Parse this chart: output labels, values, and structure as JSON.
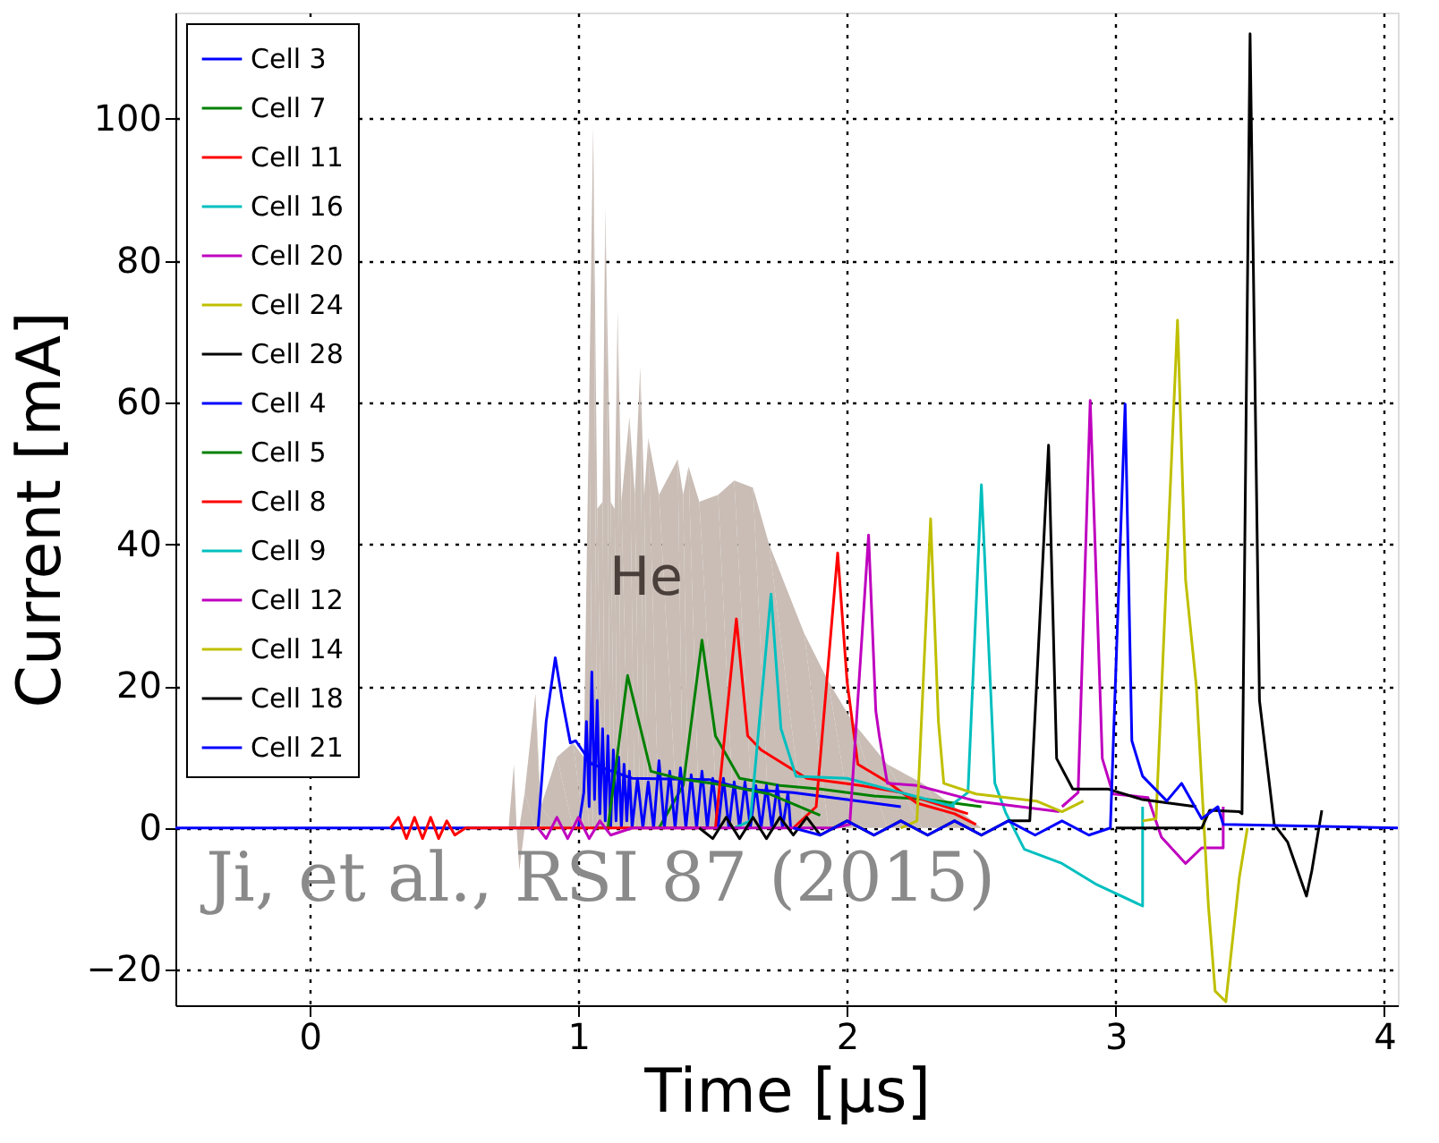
{
  "chart_data": {
    "type": "line",
    "xlabel": "Time [μs]",
    "ylabel": "Current [mA]",
    "xlim": [
      -0.5,
      4.05
    ],
    "ylim": [
      -25,
      115
    ],
    "xticks": [
      0,
      1,
      2,
      3,
      4
    ],
    "yticks": [
      -20,
      0,
      20,
      40,
      60,
      80,
      100
    ],
    "grid": true,
    "legend": "top left",
    "line_style": "solid",
    "marker": "none",
    "annotations": [
      "Ji, et al., RSI 87 (2015)"
    ],
    "series": [
      {
        "name": "He",
        "type": "area",
        "color": "#c9bdb6",
        "x": [
          0.7,
          0.74,
          0.76,
          0.77,
          0.78,
          0.8,
          0.84,
          0.86,
          0.92,
          0.98,
          1.02,
          1.04,
          1.055,
          1.07,
          1.09,
          1.1,
          1.12,
          1.135,
          1.146,
          1.16,
          1.19,
          1.21,
          1.23,
          1.245,
          1.26,
          1.3,
          1.37,
          1.39,
          1.41,
          1.45,
          1.52,
          1.58,
          1.65,
          1.71,
          1.84,
          1.93,
          2.02,
          2.15,
          2.28,
          2.4,
          2.5
        ],
        "values": [
          0,
          0,
          9,
          0,
          -6,
          5,
          19,
          3,
          10,
          12,
          10,
          60,
          99,
          45,
          46,
          87.5,
          46,
          45,
          73,
          46,
          58,
          47,
          65,
          47,
          55,
          47,
          52,
          47,
          51,
          46,
          47,
          49,
          48,
          40,
          27.5,
          20.7,
          15,
          9,
          6.3,
          3,
          0
        ]
      },
      {
        "name": "Cell 3",
        "color": "#0000ff",
        "x": [
          -0.5,
          0.85,
          0.88,
          0.914,
          0.94,
          0.97,
          0.99,
          1.05,
          1.2,
          1.49,
          1.62,
          1.8,
          2.0,
          2.2
        ],
        "values": [
          0,
          0,
          15,
          24,
          18,
          12,
          12.3,
          9,
          7,
          6.8,
          5.5,
          5,
          4,
          3
        ]
      },
      {
        "name": "Cell 7",
        "color": "#008000",
        "x": [
          1.3,
          1.39,
          1.46,
          1.51,
          1.6,
          1.75,
          1.9,
          2.1,
          2.3,
          2.5
        ],
        "values": [
          0,
          6,
          26.5,
          13,
          7,
          6,
          5.5,
          4.5,
          4,
          3
        ]
      },
      {
        "name": "Cell 11",
        "color": "#ff0000",
        "x": [
          1.8,
          1.885,
          1.965,
          2.0,
          2.04,
          2.15,
          2.26,
          2.4,
          2.48
        ],
        "values": [
          0,
          3,
          38.8,
          20.7,
          9,
          6.5,
          3.5,
          2,
          0.5
        ]
      },
      {
        "name": "Cell 16",
        "color": "#00bfbf",
        "x": [
          2.38,
          2.45,
          2.5,
          2.55,
          2.59,
          2.66,
          2.8,
          2.93,
          3.1,
          3.1
        ],
        "values": [
          3,
          5,
          48.4,
          6.3,
          2.2,
          -3,
          -5,
          -8,
          -11,
          3
        ]
      },
      {
        "name": "Cell 20",
        "color": "#bf00bf",
        "x": [
          2.8,
          2.86,
          2.905,
          2.95,
          2.99,
          3.12,
          3.17,
          3.26,
          3.32,
          3.4,
          3.4
        ],
        "values": [
          3,
          5,
          60.3,
          9.8,
          4.8,
          4.3,
          -1.3,
          -5,
          -2.8,
          -2.8,
          3
        ]
      },
      {
        "name": "Cell 24",
        "color": "#bfbf00",
        "x": [
          3.1,
          3.15,
          3.23,
          3.26,
          3.3,
          3.345,
          3.37,
          3.41,
          3.46,
          3.49
        ],
        "values": [
          1,
          1.3,
          71.6,
          35,
          20,
          -11,
          -23,
          -24.5,
          -7,
          0
        ]
      },
      {
        "name": "Cell 28",
        "color": "#000000",
        "x": [
          3.0,
          3.32,
          3.35,
          3.46,
          3.47,
          3.5,
          3.535,
          3.59,
          3.64,
          3.71,
          3.73,
          3.767
        ],
        "values": [
          0,
          0,
          2.5,
          2.3,
          2,
          112,
          18,
          0.5,
          -2,
          -9.6,
          -6,
          2.5
        ]
      },
      {
        "name": "Cell 4",
        "color": "#0000ff",
        "x": [
          1.0,
          1.02,
          1.03,
          1.04,
          1.05,
          1.06,
          1.07,
          1.08,
          1.09,
          1.1,
          1.11,
          1.12,
          1.13,
          1.14,
          1.15,
          1.16,
          1.17,
          1.18,
          1.19,
          1.2,
          1.22,
          1.24,
          1.26,
          1.28,
          1.3,
          1.32,
          1.34,
          1.36,
          1.38,
          1.4,
          1.42,
          1.44,
          1.46,
          1.48,
          1.5,
          1.52,
          1.54,
          1.56,
          1.58,
          1.6,
          1.62,
          1.64,
          1.66,
          1.68,
          1.7,
          1.72,
          1.74,
          1.76,
          1.78,
          1.79
        ],
        "values": [
          0,
          5,
          15,
          3,
          22,
          4,
          18,
          2,
          14,
          1,
          13,
          0,
          11,
          1,
          10,
          0,
          9,
          1,
          8,
          0,
          7,
          0,
          6.5,
          0,
          9.5,
          0,
          8,
          0,
          8.5,
          0,
          7.5,
          0,
          8,
          0,
          7,
          0,
          7,
          0,
          6.5,
          0,
          6.5,
          0,
          6,
          0,
          6,
          0,
          6,
          0,
          5,
          0
        ]
      },
      {
        "name": "Cell 5",
        "color": "#008000",
        "x": [
          1.05,
          1.11,
          1.183,
          1.27,
          1.37,
          1.55,
          1.71,
          1.9
        ],
        "values": [
          0,
          0,
          21.5,
          8,
          7,
          6,
          4.8,
          1.8
        ]
      },
      {
        "name": "Cell 8",
        "color": "#ff0000",
        "x": [
          0.3,
          0.33,
          0.36,
          0.39,
          0.42,
          0.45,
          0.48,
          0.51,
          0.54,
          0.58,
          1.45,
          1.51,
          1.588,
          1.63,
          1.68,
          1.85,
          2.05,
          2.2,
          2.45
        ],
        "values": [
          0,
          1.5,
          -1.5,
          1.5,
          -1.5,
          1.5,
          -1.5,
          1,
          -1,
          0,
          0,
          0,
          29.5,
          13,
          11,
          7,
          6,
          5,
          2
        ]
      },
      {
        "name": "Cell 9",
        "color": "#00bfbf",
        "x": [
          1.58,
          1.64,
          1.717,
          1.754,
          1.81,
          2.0,
          2.2,
          2.4
        ],
        "values": [
          0,
          1,
          33,
          14,
          7.3,
          7,
          5,
          3
        ]
      },
      {
        "name": "Cell 12",
        "color": "#bf00bf",
        "x": [
          0.85,
          0.88,
          0.92,
          0.96,
          1.0,
          1.04,
          1.08,
          1.12,
          1.2,
          1.95,
          2.01,
          2.08,
          2.107,
          2.12,
          2.15,
          2.26,
          2.48,
          2.79
        ],
        "values": [
          0,
          -1.5,
          1.5,
          -1.5,
          1.5,
          -1.5,
          1,
          -1,
          0,
          0,
          0.5,
          41.3,
          16.5,
          13,
          6.3,
          6,
          3.8,
          2.3
        ]
      },
      {
        "name": "Cell 14",
        "color": "#bfbf00",
        "x": [
          2.2,
          2.26,
          2.311,
          2.34,
          2.36,
          2.48,
          2.705,
          2.8,
          2.88
        ],
        "values": [
          0,
          1,
          43.6,
          15,
          6.3,
          4.8,
          3.8,
          2.3,
          3.8
        ]
      },
      {
        "name": "Cell 18",
        "color": "#000000",
        "x": [
          1.45,
          1.5,
          1.55,
          1.6,
          1.65,
          1.7,
          1.75,
          1.8,
          1.85,
          1.9,
          2.0,
          2.1,
          2.2,
          2.3,
          2.4,
          2.5,
          2.6,
          2.68,
          2.75,
          2.78,
          2.84,
          2.97,
          3.1,
          3.3
        ],
        "values": [
          0,
          -1.5,
          1.5,
          -1.5,
          1.5,
          -1.5,
          1.5,
          -1,
          1.5,
          -1,
          1,
          -1,
          1,
          -1,
          1,
          -1,
          1,
          1,
          54,
          9.8,
          5.5,
          5.5,
          4,
          3
        ]
      },
      {
        "name": "Cell 21",
        "color": "#0000ff",
        "x": [
          1.8,
          1.9,
          2.0,
          2.1,
          2.2,
          2.3,
          2.4,
          2.5,
          2.6,
          2.7,
          2.8,
          2.9,
          2.98,
          3.035,
          3.06,
          3.1,
          3.19,
          3.245,
          3.32,
          3.38,
          3.4,
          4.05
        ],
        "values": [
          0,
          -1,
          1,
          -1,
          1,
          -1,
          1,
          -1,
          1,
          -1,
          1,
          -1,
          0,
          59.8,
          12.3,
          7.3,
          3.8,
          6.3,
          1.3,
          3,
          0.5,
          0
        ]
      }
    ]
  }
}
